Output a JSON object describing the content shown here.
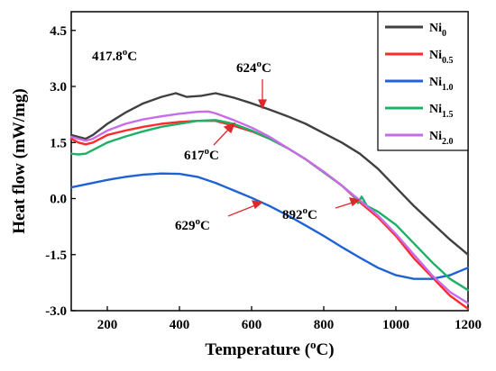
{
  "chart_data": {
    "type": "line",
    "xlabel": "Temperature (°C)",
    "xlabel_parts": {
      "main": "Temperature (",
      "sup": "o",
      "unit": "C)"
    },
    "ylabel": "Heat flow (mW/mg)",
    "xlim": [
      100,
      1200
    ],
    "ylim": [
      -3.0,
      5.0
    ],
    "xticks": [
      200,
      400,
      600,
      800,
      1000,
      1200
    ],
    "yticks": [
      -3.0,
      -1.5,
      0.0,
      1.5,
      3.0,
      4.5
    ],
    "xtick_labels": [
      "200",
      "400",
      "600",
      "800",
      "1000",
      "1200"
    ],
    "ytick_labels": [
      "-3.0",
      "-1.5",
      "0.0",
      "1.5",
      "3.0",
      "4.5"
    ],
    "grid": false,
    "legend": "top-right",
    "series": [
      {
        "name": "Ni0",
        "label_base": "Ni",
        "label_sub": "0",
        "color": "#404040",
        "x": [
          100,
          120,
          140,
          160,
          200,
          250,
          300,
          350,
          390,
          420,
          460,
          500,
          550,
          600,
          650,
          700,
          750,
          800,
          850,
          900,
          950,
          1000,
          1050,
          1100,
          1150,
          1200
        ],
        "y": [
          1.7,
          1.65,
          1.6,
          1.7,
          2.0,
          2.3,
          2.55,
          2.72,
          2.82,
          2.72,
          2.75,
          2.82,
          2.7,
          2.55,
          2.38,
          2.2,
          2.0,
          1.75,
          1.5,
          1.2,
          0.8,
          0.3,
          -0.2,
          -0.65,
          -1.1,
          -1.5
        ]
      },
      {
        "name": "Ni0.5",
        "label_base": "Ni",
        "label_sub": "0.5",
        "color": "#ff2a2a",
        "x": [
          100,
          120,
          140,
          160,
          200,
          250,
          300,
          350,
          400,
          450,
          500,
          550,
          600,
          650,
          700,
          750,
          800,
          850,
          900,
          950,
          1000,
          1050,
          1100,
          1150,
          1200
        ],
        "y": [
          1.6,
          1.5,
          1.45,
          1.5,
          1.7,
          1.82,
          1.92,
          2.0,
          2.05,
          2.08,
          2.08,
          1.95,
          1.8,
          1.6,
          1.35,
          1.05,
          0.7,
          0.35,
          -0.1,
          -0.5,
          -1.0,
          -1.6,
          -2.1,
          -2.6,
          -2.95
        ]
      },
      {
        "name": "Ni1.0",
        "label_base": "Ni",
        "label_sub": "1.0",
        "color": "#1f62d6",
        "x": [
          100,
          150,
          200,
          250,
          300,
          350,
          400,
          450,
          500,
          550,
          600,
          650,
          700,
          750,
          800,
          850,
          900,
          950,
          1000,
          1050,
          1100,
          1150,
          1200
        ],
        "y": [
          0.3,
          0.4,
          0.5,
          0.58,
          0.64,
          0.67,
          0.66,
          0.58,
          0.42,
          0.22,
          0.02,
          -0.2,
          -0.45,
          -0.72,
          -1.0,
          -1.3,
          -1.58,
          -1.85,
          -2.05,
          -2.15,
          -2.15,
          -2.05,
          -1.85
        ]
      },
      {
        "name": "Ni1.5",
        "label_base": "Ni",
        "label_sub": "1.5",
        "color": "#1fb067",
        "x": [
          100,
          120,
          140,
          160,
          200,
          250,
          300,
          350,
          400,
          450,
          500,
          550,
          600,
          650,
          700,
          750,
          800,
          850,
          880,
          895,
          905,
          920,
          950,
          1000,
          1050,
          1100,
          1150,
          1200
        ],
        "y": [
          1.2,
          1.18,
          1.2,
          1.3,
          1.5,
          1.66,
          1.8,
          1.92,
          2.0,
          2.08,
          2.1,
          2.0,
          1.82,
          1.6,
          1.35,
          1.05,
          0.7,
          0.35,
          0.1,
          -0.12,
          0.05,
          -0.2,
          -0.35,
          -0.7,
          -1.2,
          -1.7,
          -2.15,
          -2.45
        ]
      },
      {
        "name": "Ni2.0",
        "label_base": "Ni",
        "label_sub": "2.0",
        "color": "#c86be8",
        "x": [
          100,
          120,
          140,
          160,
          200,
          250,
          300,
          350,
          400,
          450,
          480,
          500,
          550,
          600,
          650,
          700,
          750,
          800,
          850,
          900,
          950,
          1000,
          1050,
          1100,
          1150,
          1200
        ],
        "y": [
          1.65,
          1.6,
          1.55,
          1.6,
          1.82,
          2.0,
          2.12,
          2.2,
          2.27,
          2.32,
          2.33,
          2.28,
          2.1,
          1.9,
          1.65,
          1.35,
          1.05,
          0.72,
          0.35,
          -0.05,
          -0.45,
          -0.95,
          -1.5,
          -2.05,
          -2.5,
          -2.8
        ]
      }
    ],
    "annotations": [
      {
        "id": "ann-417",
        "text": "417.8",
        "sup": "o",
        "unit": "C",
        "has_arrow": false
      },
      {
        "id": "ann-624",
        "text": "624",
        "sup": "o",
        "unit": "C",
        "has_arrow": true
      },
      {
        "id": "ann-617",
        "text": "617",
        "sup": "o",
        "unit": "C",
        "has_arrow": true
      },
      {
        "id": "ann-629",
        "text": "629",
        "sup": "o",
        "unit": "C",
        "has_arrow": true
      },
      {
        "id": "ann-892",
        "text": "892",
        "sup": "o",
        "unit": "C",
        "has_arrow": true
      }
    ],
    "annotation_color": "#e0282c"
  }
}
